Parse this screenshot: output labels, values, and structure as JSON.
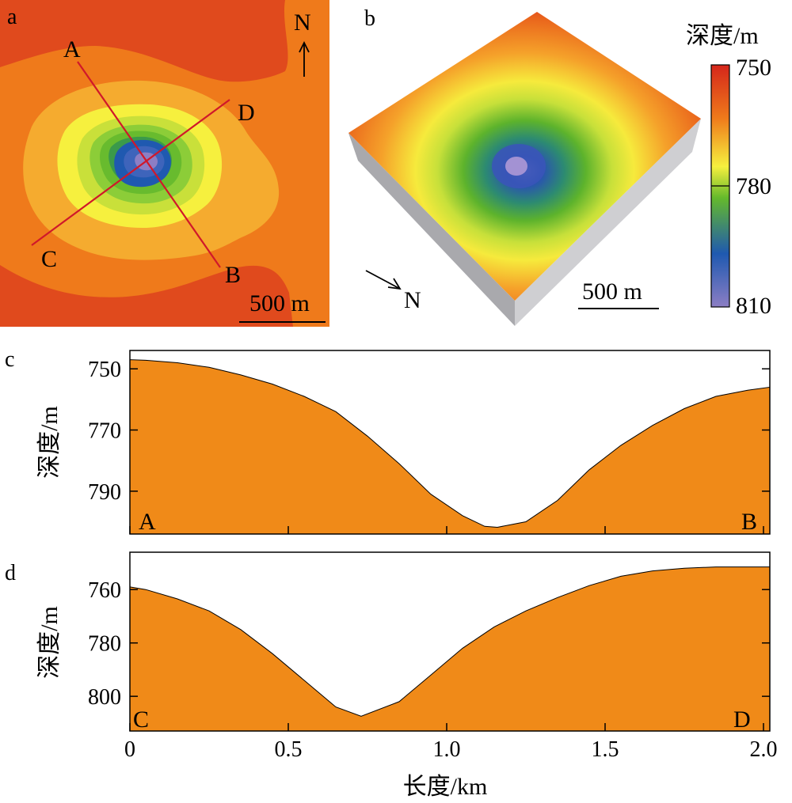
{
  "panels": {
    "a": "a",
    "b": "b",
    "c": "c",
    "d": "d"
  },
  "map_a": {
    "north_label": "N",
    "scale_label": "500 m",
    "profile_points": {
      "A": "A",
      "B": "B",
      "C": "C",
      "D": "D"
    },
    "colors": {
      "background": "#ef7a1b",
      "shallow_band": "#e04a1d",
      "outer_contour": "#f5ab2f",
      "yellow": "#f6f03e",
      "yellow_green": "#c9e03a",
      "green": "#68bb2e",
      "blue": "#1f59b0",
      "center": "#8c7ec4",
      "profile_line": "#d0182a"
    }
  },
  "block_b": {
    "north_label": "N",
    "scale_label": "500 m"
  },
  "colorbar": {
    "title": "深度/m",
    "tick_labels": [
      "750",
      "780",
      "810"
    ],
    "range": [
      750,
      810
    ],
    "colors": [
      "#d5261b",
      "#ef7a1b",
      "#f6f03e",
      "#64b92c",
      "#1f59b0",
      "#8c7ec4"
    ]
  },
  "chart_data": [
    {
      "type": "area",
      "panel": "c",
      "ylabel": "深度/m",
      "y_tick_labels": [
        "750",
        "770",
        "790"
      ],
      "y_ticks": [
        750,
        770,
        790
      ],
      "ylim": [
        744,
        804
      ],
      "y_inverted": true,
      "xlim": [
        0,
        2.02
      ],
      "x_ticks": [
        0,
        0.5,
        1.0,
        1.5,
        2.0
      ],
      "end_labels": [
        "A",
        "B"
      ],
      "fill_color": "#f08a18",
      "x": [
        0,
        0.05,
        0.15,
        0.25,
        0.35,
        0.45,
        0.55,
        0.65,
        0.75,
        0.85,
        0.95,
        1.05,
        1.12,
        1.16,
        1.25,
        1.35,
        1.45,
        1.55,
        1.65,
        1.75,
        1.85,
        1.95,
        2.02
      ],
      "values": [
        747,
        747.2,
        748,
        749.5,
        752,
        755,
        759,
        764,
        772,
        781,
        791,
        798,
        801.5,
        801.8,
        800,
        793,
        783,
        775,
        768.5,
        763,
        759,
        757,
        756
      ]
    },
    {
      "type": "area",
      "panel": "d",
      "ylabel": "深度/m",
      "y_tick_labels": [
        "760",
        "780",
        "800"
      ],
      "y_ticks": [
        760,
        780,
        800
      ],
      "ylim": [
        746,
        813
      ],
      "y_inverted": true,
      "xaxis_label": "长度/km",
      "x_tick_labels": [
        "0",
        "0.5",
        "1.0",
        "1.5",
        "2.0"
      ],
      "x_ticks": [
        0,
        0.5,
        1.0,
        1.5,
        2.0
      ],
      "xlim": [
        0,
        2.02
      ],
      "end_labels": [
        "C",
        "D"
      ],
      "fill_color": "#f08a18",
      "x": [
        0,
        0.05,
        0.15,
        0.25,
        0.35,
        0.45,
        0.55,
        0.65,
        0.73,
        0.85,
        0.95,
        1.05,
        1.15,
        1.25,
        1.35,
        1.45,
        1.55,
        1.65,
        1.75,
        1.85,
        1.95,
        2.02
      ],
      "values": [
        759,
        760,
        763.5,
        768,
        775,
        784,
        794,
        804,
        807.5,
        802,
        792,
        782,
        774,
        768,
        763,
        758.5,
        755,
        753,
        752,
        751.5,
        751.5,
        751.5
      ]
    }
  ]
}
